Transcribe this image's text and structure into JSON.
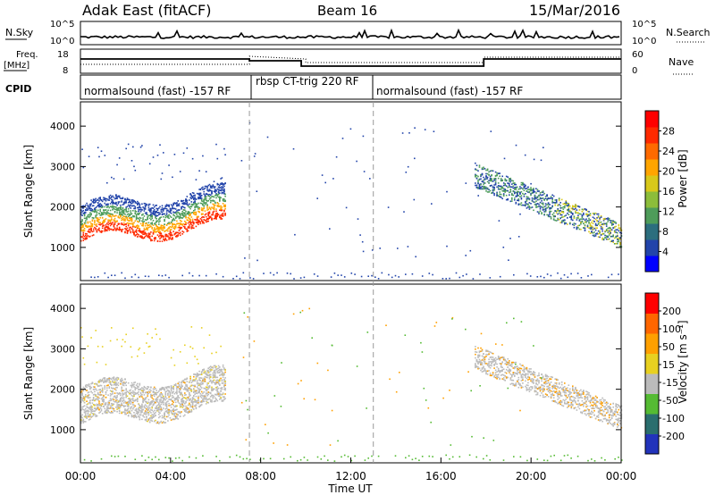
{
  "header": {
    "title": "Adak East (fitACF)",
    "beam": "Beam 16",
    "date": "15/Mar/2016"
  },
  "noise_panel": {
    "left_label": "N.Sky",
    "right_label": "N.Search",
    "left_ticks": [
      "10^5",
      "10^0"
    ],
    "right_ticks": [
      "10^5",
      "10^0"
    ]
  },
  "freq_panel": {
    "left_label": "Freq.",
    "left_unit": "[MHz]",
    "left_ticks": [
      "18",
      "8"
    ],
    "right_label": "Nave",
    "right_ticks": [
      "60",
      "0"
    ]
  },
  "cpid_panel": {
    "label": "CPID",
    "segments": [
      {
        "label": "normalsound (fast) -157 RF",
        "start_h": 0,
        "end_h": 7.5
      },
      {
        "label": "rbsp CT-trig 220 RF",
        "start_h": 7.5,
        "end_h": 13.0
      },
      {
        "label": "normalsound (fast) -157 RF",
        "start_h": 13.0,
        "end_h": 24
      }
    ]
  },
  "colors": {
    "power": [
      "#0000ff",
      "#2244aa",
      "#2c6e7e",
      "#4e9c5a",
      "#8cbd3a",
      "#d8c81a",
      "#ffa500",
      "#ff6a00",
      "#ff2a00",
      "#ff0000"
    ],
    "velocity": [
      "#2233bb",
      "#2a6e6e",
      "#55bb33",
      "#bbbbbb",
      "#e8d020",
      "#ffa000",
      "#ff6600",
      "#ff0000"
    ]
  },
  "chart_data": [
    {
      "type": "heatmap",
      "name": "Power",
      "ylabel": "Slant Range [km]",
      "ylim": [
        180,
        4600
      ],
      "yticks": [
        "4000",
        "3000",
        "2000",
        "1000"
      ],
      "colorbar_label": "Power [dB]",
      "colorbar_ticks": [
        "28",
        "24",
        "20",
        "16",
        "12",
        "8",
        "4"
      ],
      "colorbar_range": [
        0,
        32
      ]
    },
    {
      "type": "heatmap",
      "name": "Velocity",
      "ylabel": "Slant Range [km]",
      "ylim": [
        180,
        4600
      ],
      "yticks": [
        "4000",
        "3000",
        "2000",
        "1000"
      ],
      "colorbar_label": "Velocity [m s⁻¹]",
      "colorbar_ticks": [
        "200",
        "100",
        "50",
        "15",
        "-15",
        "-50",
        "-100",
        "-200"
      ]
    }
  ],
  "x_axis": {
    "label": "Time UT",
    "ticks": [
      "00:00",
      "04:00",
      "08:00",
      "12:00",
      "16:00",
      "20:00",
      "00:00"
    ],
    "range_h": [
      0,
      24
    ]
  }
}
